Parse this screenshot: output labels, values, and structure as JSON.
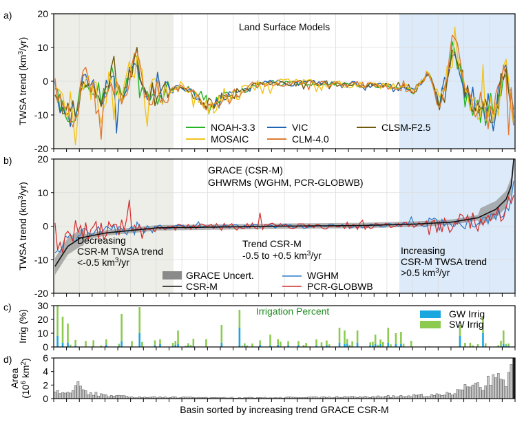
{
  "xlabel": "Basin sorted by increasing trend GRACE CSR-M",
  "colors": {
    "noah": "#22b522",
    "vic": "#1f64b4",
    "clsm": "#6e5a0a",
    "mosaic": "#f2c31a",
    "clm": "#e07a32",
    "csr": "#111111",
    "uncert": "#8a8a8a",
    "wghm": "#2a78c8",
    "pcr": "#d42a2a",
    "gw": "#1aa7e0",
    "sw": "#8ccb50",
    "area_bar": "#c7c7c7",
    "region_decreasing": "#edeee8",
    "region_increasing": "#dceaf9",
    "irrig_title": "#1f8a1f"
  },
  "chart_data": [
    {
      "panel": "a)",
      "type": "line",
      "title": "Land Surface Models",
      "ylabel": "TWSA trend (km3/yr)",
      "ylabel_main": "TWSA trend (km",
      "ylabel_sup": "3",
      "ylabel_end": "/yr)",
      "ylim": [
        -20,
        20
      ],
      "yticks": [
        "-20",
        "-10",
        "0",
        "10",
        "20"
      ],
      "n_basins": 180,
      "series": [
        {
          "name": "NOAH-3.3",
          "color_key": "noah",
          "amp": 1.0
        },
        {
          "name": "VIC",
          "color_key": "vic",
          "amp": 1.0
        },
        {
          "name": "CLSM-F2.5",
          "color_key": "clsm",
          "amp": 1.0
        },
        {
          "name": "MOSAIC",
          "color_key": "mosaic",
          "amp": 1.6
        },
        {
          "name": "CLM-4.0",
          "color_key": "clm",
          "amp": 1.3
        }
      ],
      "anchors": [
        [
          0,
          -4
        ],
        [
          4,
          -16
        ],
        [
          8,
          -20
        ],
        [
          10,
          -3
        ],
        [
          12,
          2
        ],
        [
          18,
          -12
        ],
        [
          22,
          3
        ],
        [
          25,
          -10
        ],
        [
          32,
          12
        ],
        [
          35,
          -8
        ],
        [
          45,
          -5
        ],
        [
          50,
          -3
        ],
        [
          60,
          -13
        ],
        [
          65,
          -10
        ],
        [
          80,
          -1
        ],
        [
          100,
          -1
        ],
        [
          120,
          -2
        ],
        [
          135,
          -3
        ],
        [
          140,
          -5
        ],
        [
          146,
          4
        ],
        [
          150,
          -12
        ],
        [
          156,
          20
        ],
        [
          160,
          -8
        ],
        [
          168,
          -15
        ],
        [
          172,
          -18
        ],
        [
          176,
          9
        ],
        [
          179,
          -20
        ]
      ],
      "legend_position": "bottom-right"
    },
    {
      "panel": "b)",
      "type": "line",
      "title_lines": [
        "GRACE (CSR-M)",
        "GHWRMs (WGHM, PCR-GLOBWB)"
      ],
      "ylim": [
        -20,
        20
      ],
      "yticks": [
        "-20",
        "-10",
        "0",
        "10",
        "20"
      ],
      "csr_m_profile": [
        [
          0,
          -12
        ],
        [
          5,
          -6
        ],
        [
          10,
          -3.5
        ],
        [
          20,
          -2
        ],
        [
          40,
          -0.5
        ],
        [
          60,
          -0.3
        ],
        [
          90,
          0
        ],
        [
          120,
          0.2
        ],
        [
          140,
          0.6
        ],
        [
          155,
          1.2
        ],
        [
          165,
          2.5
        ],
        [
          172,
          5
        ],
        [
          176,
          8
        ],
        [
          178,
          12
        ],
        [
          179,
          20
        ]
      ],
      "series": [
        {
          "name": "GRACE Uncert.",
          "color_key": "uncert"
        },
        {
          "name": "CSR-M",
          "color_key": "csr"
        },
        {
          "name": "WGHM",
          "color_key": "wghm"
        },
        {
          "name": "PCR-GLOBWB",
          "color_key": "pcr"
        }
      ],
      "annotations": {
        "decreasing": {
          "l1": "Decreasing",
          "l2": "CSR-M TWSA trend",
          "l3_main": "<-0.5 km",
          "l3_sup": "3",
          "l3_end": "/yr"
        },
        "stable": {
          "l1": "Trend CSR-M",
          "l2_main": "-0.5 to +0.5 km",
          "l2_sup": "3",
          "l2_end": "/yr"
        },
        "increasing": {
          "l1": "Increasing",
          "l2": "CSR-M TWSA trend",
          "l3_main": ">0.5 km",
          "l3_sup": "3",
          "l3_end": "/yr"
        }
      },
      "legend_position": "bottom-center"
    },
    {
      "panel": "c)",
      "type": "bar",
      "title": "Irrigation Percent",
      "ylabel": "Irrig (%)",
      "ylim": [
        0,
        30
      ],
      "yticks": [
        "0",
        "10",
        "20",
        "30"
      ],
      "series": [
        {
          "name": "GW Irrig",
          "color_key": "gw"
        },
        {
          "name": "SW Irrig",
          "color_key": "sw"
        }
      ],
      "peaks": [
        [
          1,
          30,
          8
        ],
        [
          3,
          22,
          3
        ],
        [
          5,
          17,
          3
        ],
        [
          26,
          24,
          4
        ],
        [
          33,
          29,
          10
        ],
        [
          48,
          12,
          2
        ],
        [
          65,
          16,
          3
        ],
        [
          72,
          27,
          14
        ],
        [
          84,
          9,
          1
        ],
        [
          111,
          14,
          3
        ],
        [
          113,
          12,
          2
        ],
        [
          118,
          12,
          3
        ],
        [
          125,
          9,
          2
        ],
        [
          130,
          14,
          3
        ],
        [
          133,
          10,
          2
        ],
        [
          135,
          11,
          2
        ],
        [
          158,
          16,
          8
        ],
        [
          167,
          22,
          10
        ],
        [
          175,
          12,
          2
        ]
      ],
      "legend_position": "top-right"
    },
    {
      "panel": "d)",
      "type": "bar",
      "ylabel_line1": "Area",
      "ylabel_line2_main": "(10",
      "ylabel_line2_sup": "6",
      "ylabel_line2_end": " km",
      "ylabel_line2_sup2": "2",
      "ylabel_line2_tail": ")",
      "ylim": [
        0,
        6
      ],
      "yticks": [
        "0",
        "2",
        "4",
        "6"
      ],
      "profile": [
        [
          0,
          1.0
        ],
        [
          4,
          1.3
        ],
        [
          8,
          1.5
        ],
        [
          10,
          2.8
        ],
        [
          12,
          1.2
        ],
        [
          15,
          0.8
        ],
        [
          20,
          0.5
        ],
        [
          30,
          0.3
        ],
        [
          60,
          0.15
        ],
        [
          100,
          0.2
        ],
        [
          130,
          0.35
        ],
        [
          150,
          0.6
        ],
        [
          160,
          1.6
        ],
        [
          166,
          2.4
        ],
        [
          172,
          3.0
        ],
        [
          176,
          2.2
        ],
        [
          179,
          6
        ]
      ]
    }
  ]
}
